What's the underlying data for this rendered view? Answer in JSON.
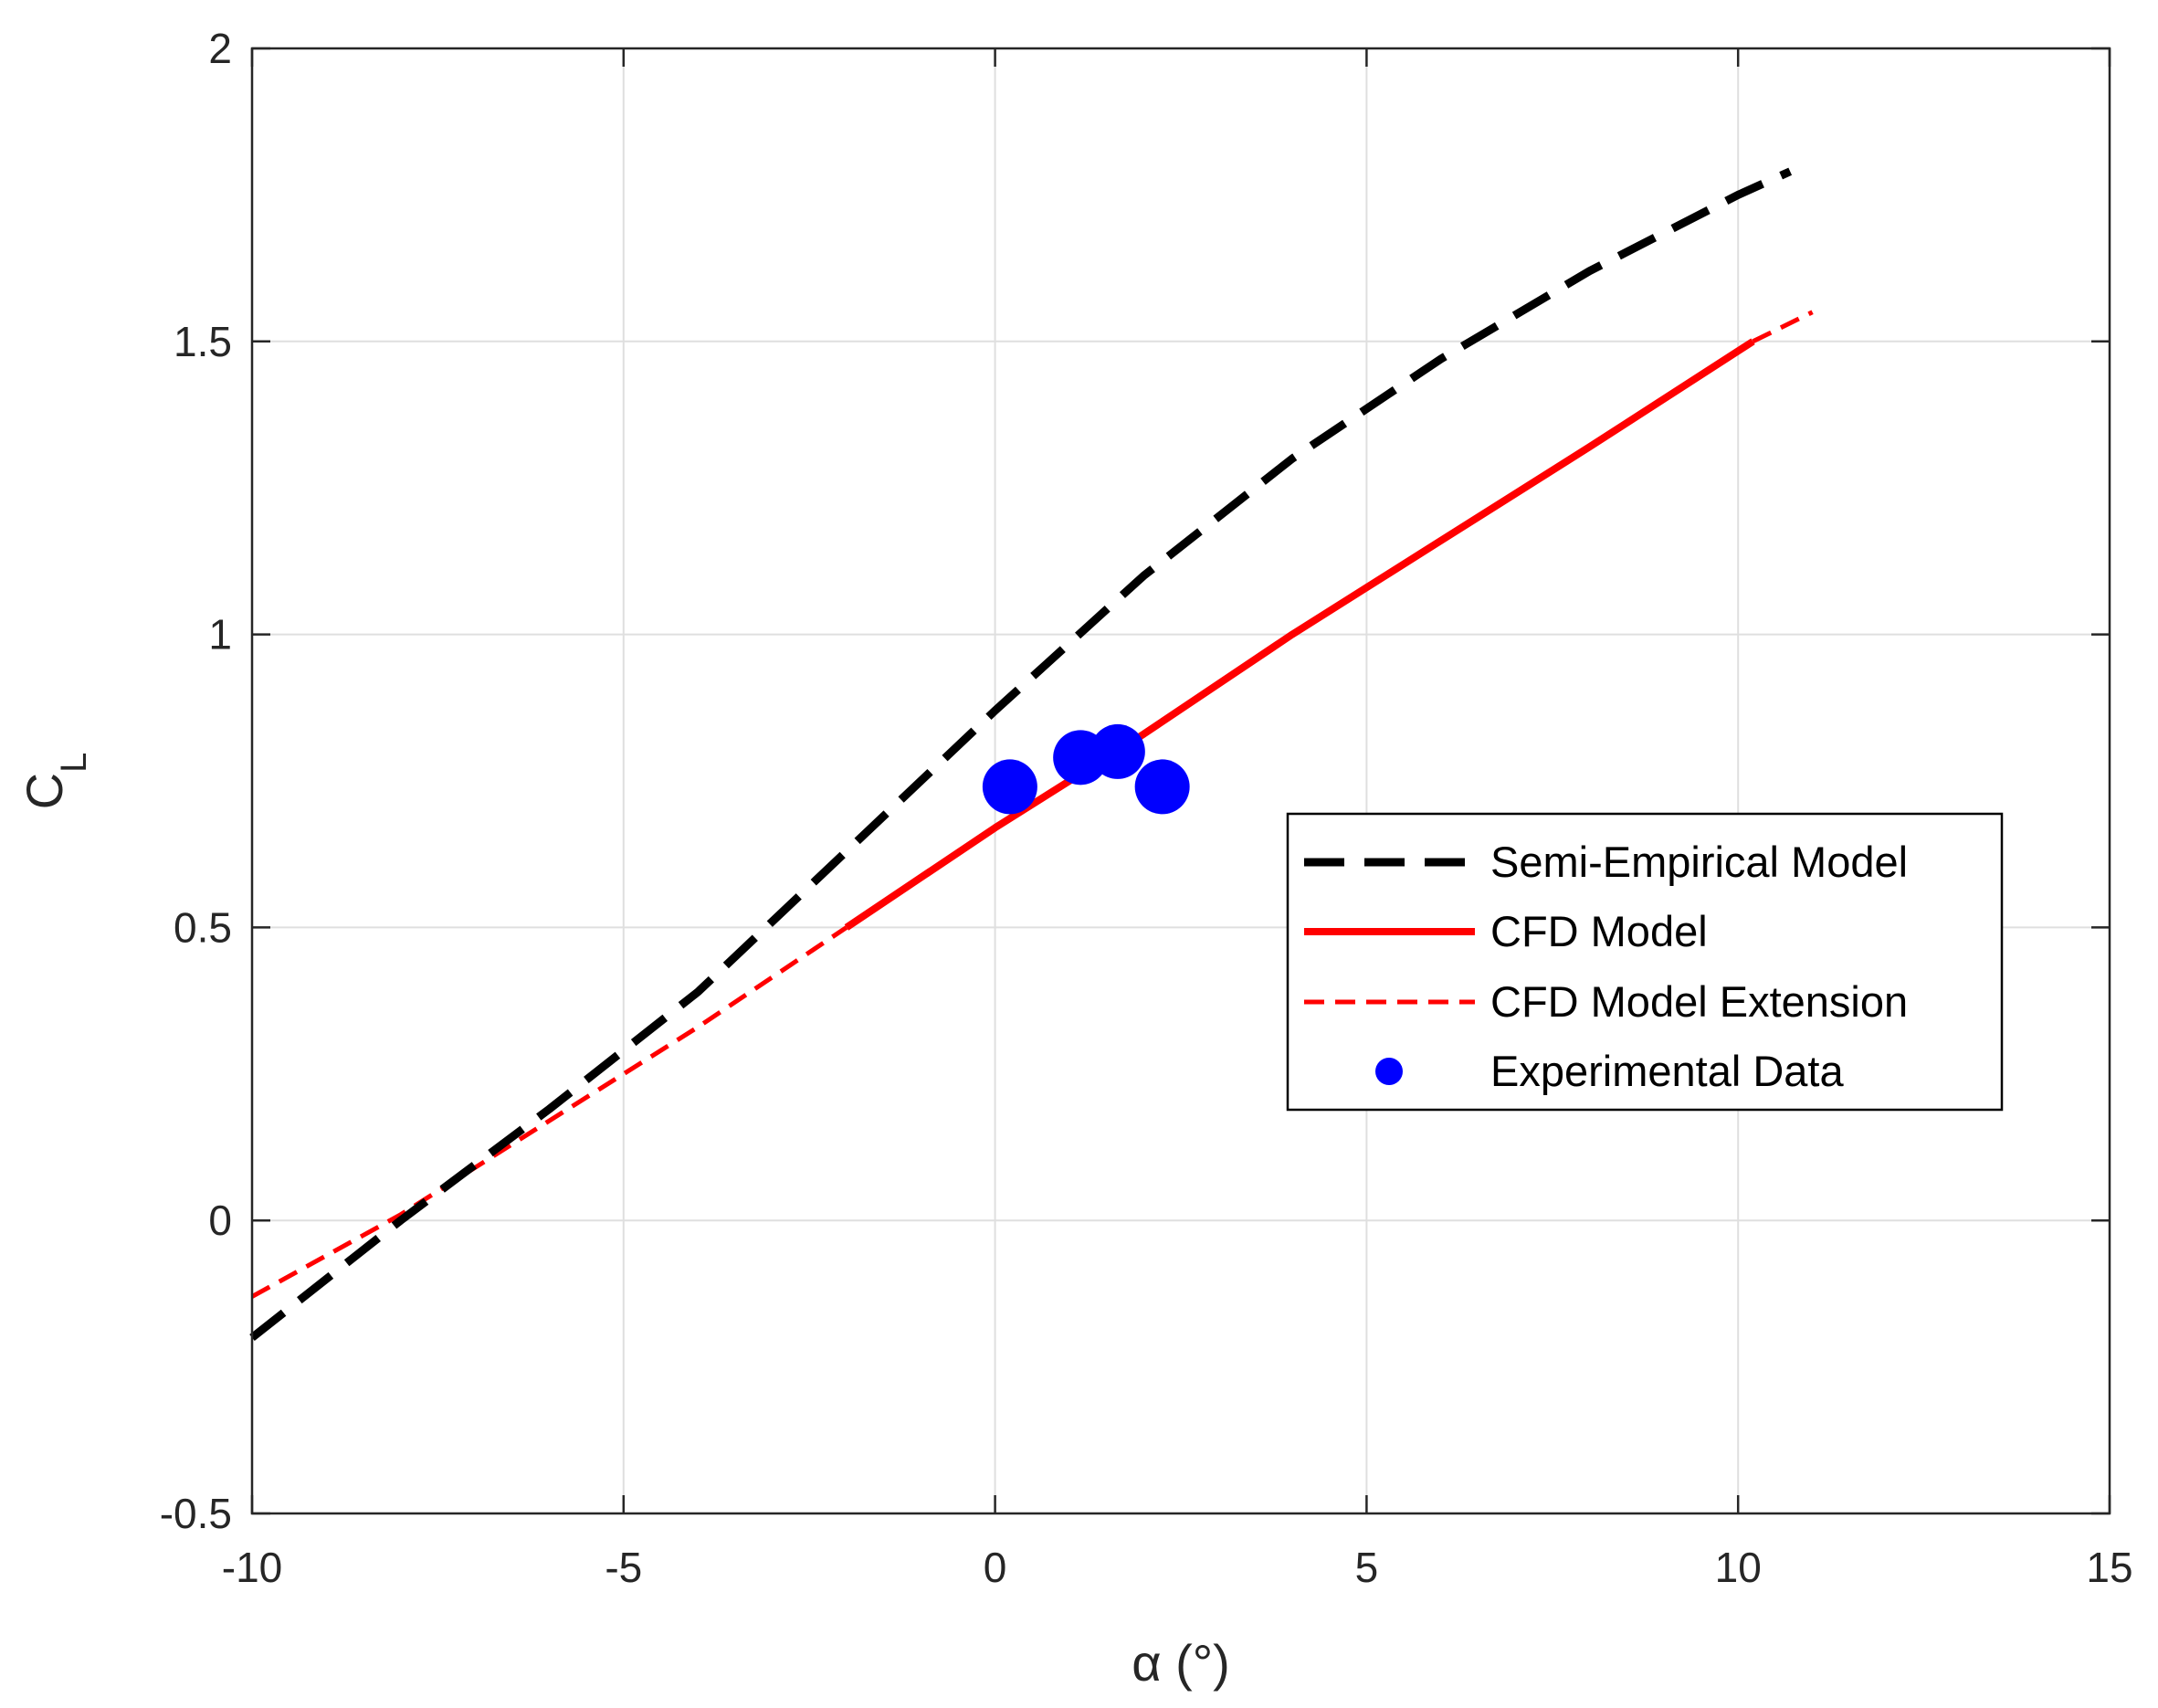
{
  "chart_data": {
    "type": "line",
    "title": "",
    "xlabel": "α (°)",
    "ylabel": {
      "main": "C",
      "subscript": "L"
    },
    "xlim": [
      -10,
      15
    ],
    "ylim": [
      -0.5,
      2
    ],
    "xticks": [
      -10,
      -5,
      0,
      5,
      10,
      15
    ],
    "yticks": [
      -0.5,
      0,
      0.5,
      1,
      1.5,
      2
    ],
    "xtick_labels": [
      "-10",
      "-5",
      "0",
      "5",
      "10",
      "15"
    ],
    "ytick_labels": [
      "-0.5",
      "0",
      "0.5",
      "1",
      "1.5",
      "2"
    ],
    "grid": true,
    "legend_position": "right",
    "series": [
      {
        "name": "Semi-Empirical Model",
        "style": "dashed",
        "color": "#000000",
        "x": [
          -10,
          -8,
          -6,
          -4,
          -2,
          0,
          2,
          4,
          6,
          8,
          10,
          10.7
        ],
        "y": [
          -0.2,
          -0.0,
          0.19,
          0.39,
          0.63,
          0.87,
          1.1,
          1.3,
          1.47,
          1.62,
          1.75,
          1.79
        ]
      },
      {
        "name": "CFD Model",
        "style": "solid",
        "color": "#ff0000",
        "x": [
          -2,
          0,
          2,
          4,
          6,
          8,
          10.2
        ],
        "y": [
          0.5,
          0.67,
          0.83,
          1.0,
          1.16,
          1.32,
          1.5
        ]
      },
      {
        "name": "CFD Model Extension",
        "style": "short-dashed",
        "color": "#ff0000",
        "x": [
          -10,
          -8,
          -6,
          -4,
          -2,
          10.2,
          11
        ],
        "y": [
          -0.13,
          0.01,
          0.17,
          0.33,
          0.5,
          1.5,
          1.55
        ]
      },
      {
        "name": "Experimental Data",
        "style": "markers",
        "color": "#0000ff",
        "x": [
          0.2,
          1.15,
          1.65,
          2.25
        ],
        "y": [
          0.74,
          0.79,
          0.8,
          0.74
        ]
      }
    ]
  }
}
